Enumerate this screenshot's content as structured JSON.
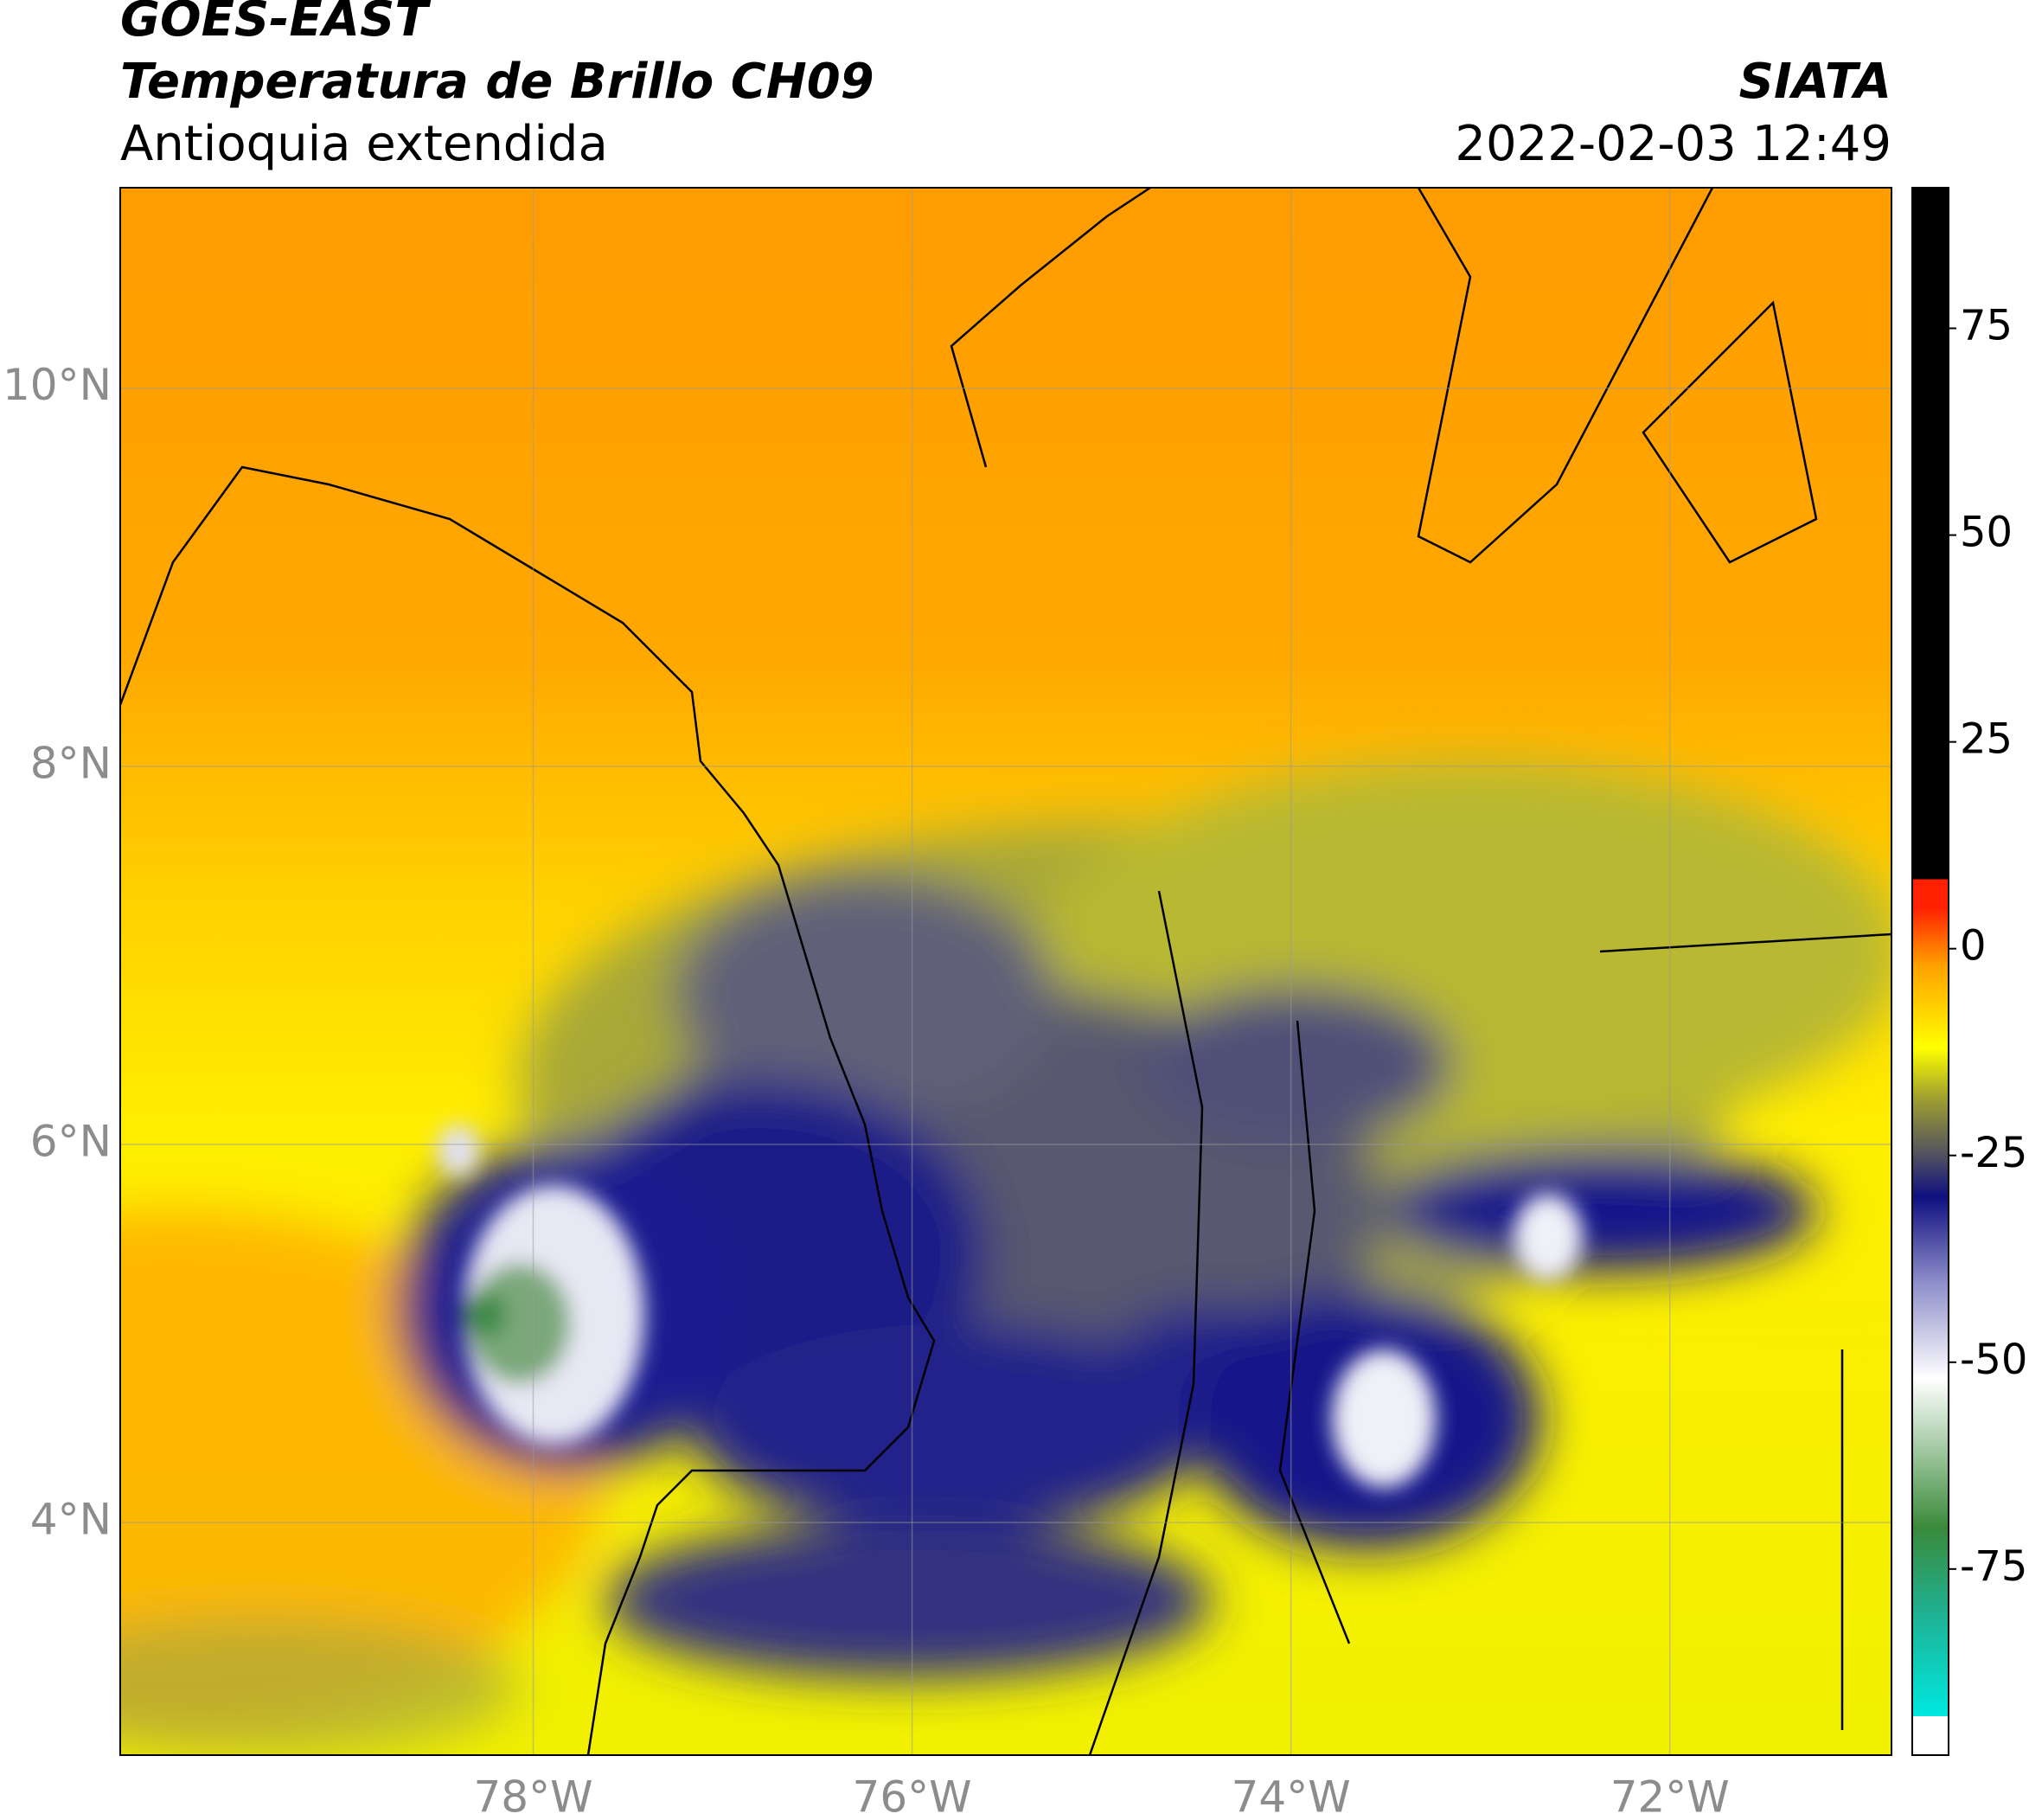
{
  "header": {
    "title": "GOES-EAST",
    "subtitle": "Temperatura de Brillo CH09",
    "region": "Antioquia extendida",
    "source": "SIATA",
    "datetime": "2022-02-03 12:49"
  },
  "map": {
    "xlim": [
      -80.18,
      -70.83
    ],
    "ylim": [
      2.77,
      11.06
    ],
    "xticks": [
      {
        "value": -78,
        "label": "78°W"
      },
      {
        "value": -76,
        "label": "76°W"
      },
      {
        "value": -74,
        "label": "74°W"
      },
      {
        "value": -72,
        "label": "72°W"
      }
    ],
    "yticks": [
      {
        "value": 4,
        "label": "4°N"
      },
      {
        "value": 6,
        "label": "6°N"
      },
      {
        "value": 8,
        "label": "8°N"
      },
      {
        "value": 10,
        "label": "10°N"
      }
    ]
  },
  "colorbar": {
    "lim": [
      -97.5,
      92
    ],
    "ticks": [
      -75,
      -50,
      -25,
      0,
      25,
      50,
      75
    ],
    "stops": [
      {
        "value": -97.5,
        "color": "#ffffff"
      },
      {
        "value": -92.8,
        "color": "#ffffff"
      },
      {
        "value": -92.8,
        "color": "#00e8e0"
      },
      {
        "value": -80,
        "color": "#20b090"
      },
      {
        "value": -70,
        "color": "#3a8a3a"
      },
      {
        "value": -60,
        "color": "#a8cca8"
      },
      {
        "value": -52,
        "color": "#ffffff"
      },
      {
        "value": -40,
        "color": "#8a8ac8"
      },
      {
        "value": -30,
        "color": "#101080"
      },
      {
        "value": -25,
        "color": "#505060"
      },
      {
        "value": -18,
        "color": "#a0a030"
      },
      {
        "value": -12,
        "color": "#ffff00"
      },
      {
        "value": -2,
        "color": "#ffa000"
      },
      {
        "value": 5,
        "color": "#ff2000"
      },
      {
        "value": 8.4,
        "color": "#ff2000"
      },
      {
        "value": 8.4,
        "color": "#000000"
      },
      {
        "value": 92,
        "color": "#000000"
      }
    ]
  }
}
